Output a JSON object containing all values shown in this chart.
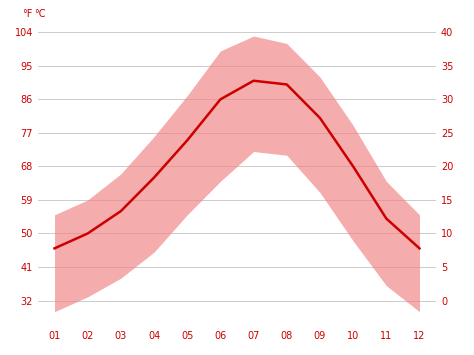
{
  "months": [
    1,
    2,
    3,
    4,
    5,
    6,
    7,
    8,
    9,
    10,
    11,
    12
  ],
  "month_labels": [
    "01",
    "02",
    "03",
    "04",
    "05",
    "06",
    "07",
    "08",
    "09",
    "10",
    "11",
    "12"
  ],
  "avg_temp_f": [
    46,
    50,
    56,
    65,
    75,
    86,
    91,
    90,
    81,
    68,
    54,
    46
  ],
  "max_temp_f": [
    55,
    59,
    66,
    76,
    87,
    99,
    103,
    101,
    92,
    79,
    64,
    55
  ],
  "min_temp_f": [
    29,
    33,
    38,
    45,
    55,
    64,
    72,
    71,
    61,
    48,
    36,
    29
  ],
  "y_ticks_f": [
    32,
    41,
    50,
    59,
    68,
    77,
    86,
    95,
    104
  ],
  "y_ticks_c": [
    0,
    5,
    10,
    15,
    20,
    25,
    30,
    35,
    40
  ],
  "ylim_f": [
    25,
    106
  ],
  "line_color": "#cc0000",
  "band_color": "#f08080",
  "band_alpha": 0.65,
  "bg_color": "#ffffff",
  "grid_color": "#cccccc",
  "tick_color": "#cc0000",
  "label_fontsize": 7,
  "line_width": 1.8
}
